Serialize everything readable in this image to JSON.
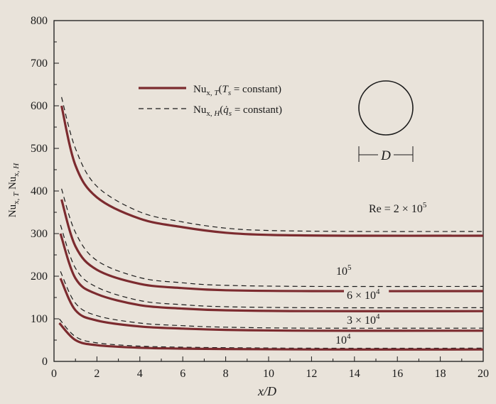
{
  "chart_data": {
    "type": "line",
    "xlabel": "x/D",
    "ylabel": "Nu_{x, T}  Nu_{x, H}",
    "xlim": [
      0,
      20
    ],
    "ylim": [
      0,
      800
    ],
    "xticks": [
      "0",
      "2",
      "4",
      "6",
      "8",
      "10",
      "12",
      "14",
      "16",
      "18",
      "20"
    ],
    "yticks": [
      "0",
      "100",
      "200",
      "300",
      "400",
      "500",
      "600",
      "700",
      "800"
    ],
    "grid": false,
    "legend_position": "top-center",
    "legend": [
      {
        "label": "Nu_{x, T} (T_s = constant)",
        "style": "solid"
      },
      {
        "label": "Nu_{x, H} (q̇_s = constant)",
        "style": "dashed"
      }
    ],
    "inset_label": "D",
    "series": [
      {
        "curve_label": "Re = 2 × 10^5",
        "fd_T": 295,
        "fd_H": 305,
        "entrance": [
          [
            0.35,
            600
          ],
          [
            1,
            460
          ],
          [
            2,
            385
          ],
          [
            4,
            335
          ],
          [
            6,
            315
          ],
          [
            8,
            302
          ],
          [
            10,
            297
          ],
          [
            14,
            295
          ],
          [
            20,
            295
          ]
        ]
      },
      {
        "curve_label": "10^5",
        "fd_T": 165,
        "fd_H": 176,
        "entrance": [
          [
            0.35,
            380
          ],
          [
            1,
            270
          ],
          [
            2,
            215
          ],
          [
            4,
            182
          ],
          [
            6,
            172
          ],
          [
            8,
            167
          ],
          [
            12,
            165
          ],
          [
            20,
            165
          ]
        ]
      },
      {
        "curve_label": "6 × 10^4",
        "fd_T": 118,
        "fd_H": 126,
        "entrance": [
          [
            0.3,
            300
          ],
          [
            1,
            195
          ],
          [
            2,
            158
          ],
          [
            4,
            132
          ],
          [
            6,
            124
          ],
          [
            8,
            120
          ],
          [
            12,
            118
          ],
          [
            20,
            118
          ]
        ]
      },
      {
        "curve_label": "3 × 10^4",
        "fd_T": 72,
        "fd_H": 78,
        "entrance": [
          [
            0.3,
            195
          ],
          [
            1,
            120
          ],
          [
            2,
            96
          ],
          [
            4,
            82
          ],
          [
            6,
            77
          ],
          [
            8,
            74
          ],
          [
            12,
            72
          ],
          [
            20,
            72
          ]
        ]
      },
      {
        "curve_label": "10^4",
        "fd_T": 28,
        "fd_H": 31,
        "entrance": [
          [
            0.25,
            90
          ],
          [
            1,
            50
          ],
          [
            2,
            38
          ],
          [
            4,
            32
          ],
          [
            6,
            30
          ],
          [
            8,
            29
          ],
          [
            12,
            28
          ],
          [
            20,
            28
          ]
        ]
      }
    ],
    "colors": {
      "solid": "#7c2b2f",
      "dashed": "#1a1a1a",
      "axis": "#1a1a1a",
      "background": "#e9e3da"
    }
  }
}
